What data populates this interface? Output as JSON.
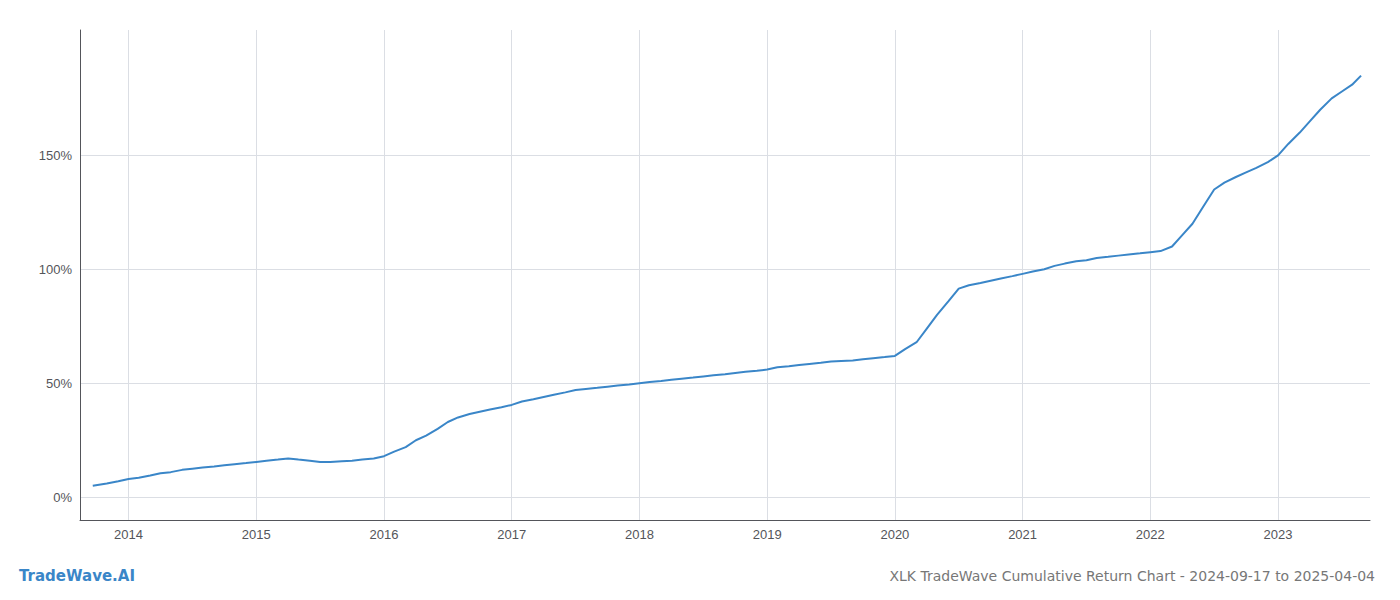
{
  "chart_data": {
    "type": "line",
    "title": "XLK TradeWave Cumulative Return Chart - 2024-09-17 to 2025-04-04",
    "annotations": [
      {
        "text": "TradeWave.AI",
        "color": "#3a86c8"
      }
    ],
    "color": "#3a86c8",
    "grid": true,
    "x": [
      2013.72,
      2013.83,
      2013.92,
      2014.0,
      2014.08,
      2014.17,
      2014.25,
      2014.33,
      2014.42,
      2014.5,
      2014.58,
      2014.67,
      2014.75,
      2014.83,
      2014.92,
      2015.0,
      2015.08,
      2015.17,
      2015.25,
      2015.33,
      2015.42,
      2015.5,
      2015.58,
      2015.67,
      2015.75,
      2015.83,
      2015.92,
      2016.0,
      2016.08,
      2016.17,
      2016.25,
      2016.33,
      2016.42,
      2016.5,
      2016.58,
      2016.67,
      2016.75,
      2016.83,
      2016.92,
      2017.0,
      2017.08,
      2017.17,
      2017.25,
      2017.33,
      2017.42,
      2017.5,
      2017.58,
      2017.67,
      2017.75,
      2017.83,
      2017.92,
      2018.0,
      2018.08,
      2018.17,
      2018.25,
      2018.33,
      2018.42,
      2018.5,
      2018.58,
      2018.67,
      2018.75,
      2018.83,
      2018.92,
      2019.0,
      2019.08,
      2019.17,
      2019.25,
      2019.33,
      2019.42,
      2019.5,
      2019.58,
      2019.67,
      2019.75,
      2019.83,
      2019.92,
      2020.0,
      2020.08,
      2020.17,
      2020.25,
      2020.33,
      2020.42,
      2020.5,
      2020.58,
      2020.67,
      2020.75,
      2020.83,
      2020.92,
      2021.0,
      2021.08,
      2021.17,
      2021.25,
      2021.33,
      2021.42,
      2021.5,
      2021.58,
      2021.67,
      2021.75,
      2021.83,
      2021.92,
      2022.0,
      2022.08,
      2022.17,
      2022.25,
      2022.33,
      2022.42,
      2022.5,
      2022.58,
      2022.67,
      2022.75,
      2022.83,
      2022.92,
      2023.0,
      2023.08,
      2023.17,
      2023.25,
      2023.33,
      2023.42,
      2023.5,
      2023.58,
      2023.65
    ],
    "values": [
      5.0,
      6.0,
      7.0,
      8.0,
      8.5,
      9.5,
      10.5,
      11.0,
      12.0,
      12.5,
      13.0,
      13.5,
      14.0,
      14.5,
      15.0,
      15.5,
      16.0,
      16.5,
      17.0,
      16.5,
      16.0,
      15.5,
      15.5,
      15.8,
      16.0,
      16.5,
      17.0,
      18.0,
      20.0,
      22.0,
      25.0,
      27.0,
      30.0,
      33.0,
      35.0,
      36.5,
      37.5,
      38.5,
      39.5,
      40.5,
      42.0,
      43.0,
      44.0,
      45.0,
      46.0,
      47.0,
      47.5,
      48.0,
      48.5,
      49.0,
      49.5,
      50.0,
      50.5,
      51.0,
      51.5,
      52.0,
      52.5,
      53.0,
      53.5,
      54.0,
      54.5,
      55.0,
      55.5,
      56.0,
      57.0,
      57.5,
      58.0,
      58.5,
      59.0,
      59.5,
      59.8,
      60.0,
      60.5,
      61.0,
      61.5,
      62.0,
      65.0,
      68.0,
      74.0,
      80.0,
      86.0,
      91.5,
      93.0,
      94.0,
      95.0,
      96.0,
      97.0,
      98.0,
      99.0,
      100.0,
      101.5,
      102.5,
      103.5,
      104.0,
      105.0,
      105.5,
      106.0,
      106.5,
      107.0,
      107.5,
      108.0,
      110.0,
      115.0,
      120.0,
      128.0,
      135.0,
      138.0,
      140.5,
      142.5,
      144.5,
      147.0,
      150.0,
      155.0,
      160.0,
      165.0,
      170.0,
      175.0,
      178.0,
      181.0,
      185.0
    ],
    "xlim": [
      2013.62,
      2023.72
    ],
    "xticks": [
      2014,
      2015,
      2016,
      2017,
      2018,
      2019,
      2020,
      2021,
      2022,
      2023
    ],
    "ylim": [
      -10,
      205
    ],
    "yticks": [
      {
        "value": 0,
        "label": "0%"
      },
      {
        "value": 50,
        "label": "50%"
      },
      {
        "value": 100,
        "label": "100%"
      },
      {
        "value": 150,
        "label": "150%"
      }
    ]
  }
}
